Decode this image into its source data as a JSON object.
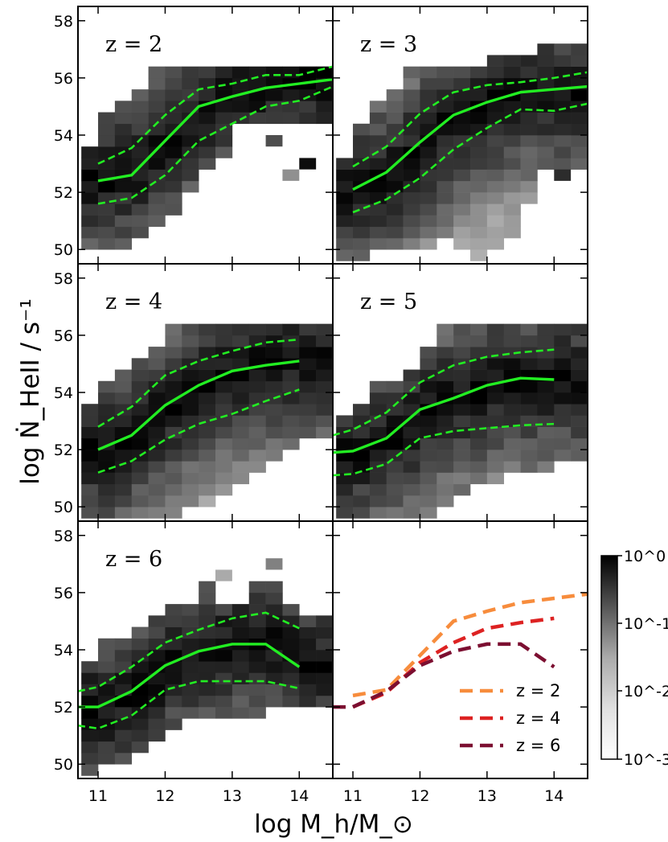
{
  "figure": {
    "xlabel": "log M_h/M_⊙",
    "ylabel": "log Ṅ_HeII / s⁻¹",
    "x_ticks": [
      "11",
      "12",
      "13",
      "14"
    ],
    "y_ticks": [
      "50",
      "52",
      "54",
      "56",
      "58"
    ],
    "colorbar_ticks": [
      "10^0",
      "10^-1",
      "10^-2",
      "10^-3"
    ]
  },
  "chart_data": {
    "type": "heatmap",
    "xlabel": "log M_h/M_⊙",
    "ylabel": "log Ṅ_HeII / s⁻¹",
    "xlim": [
      10.7,
      14.5
    ],
    "ylim": [
      49.5,
      58.5
    ],
    "colorbar": {
      "label": "",
      "scale": "log",
      "range": [
        0.001,
        1
      ],
      "ticks": [
        "10^0",
        "10^-1",
        "10^-2",
        "10^-3"
      ]
    },
    "panels": [
      {
        "label": "z = 2",
        "median": {
          "x": [
            11.0,
            11.5,
            12.0,
            12.5,
            13.0,
            13.5,
            14.0,
            14.5
          ],
          "y": [
            52.4,
            52.6,
            53.8,
            55.0,
            55.35,
            55.65,
            55.8,
            55.95
          ]
        },
        "upper": {
          "x": [
            11.0,
            11.5,
            12.0,
            12.5,
            13.0,
            13.5,
            14.0,
            14.5
          ],
          "y": [
            53.0,
            53.55,
            54.7,
            55.6,
            55.8,
            56.1,
            56.1,
            56.4
          ]
        },
        "lower": {
          "x": [
            11.0,
            11.5,
            12.0,
            12.5,
            13.0,
            13.5,
            14.0,
            14.5
          ],
          "y": [
            51.6,
            51.8,
            52.6,
            53.8,
            54.4,
            55.0,
            55.2,
            55.7
          ]
        },
        "ridge": [
          52.4,
          52.4,
          52.6,
          52.8,
          53.3,
          53.8,
          54.4,
          55.0,
          55.2,
          55.4,
          55.6,
          55.8,
          55.8,
          55.9
        ],
        "ymin": [
          50.2,
          50.2,
          50.2,
          50.6,
          50.8,
          51.4,
          52.2,
          52.8,
          53.4,
          54.6,
          54.6,
          54.6,
          54.6,
          54.6
        ],
        "ymax": [
          53.6,
          54.8,
          55.2,
          55.6,
          56.2,
          56.2,
          56.2,
          56.2,
          56.2,
          56.2,
          56.6,
          56.6,
          56.6,
          56.6
        ],
        "extras": [
          [
            14.0,
            52.6,
            0.7
          ],
          [
            13.6,
            53.8,
            0.12
          ],
          [
            13.7,
            52.2,
            0.02
          ]
        ]
      },
      {
        "label": "z = 3",
        "median": {
          "x": [
            11.0,
            11.5,
            12.0,
            12.5,
            13.0,
            13.5,
            14.0,
            14.5
          ],
          "y": [
            52.1,
            52.7,
            53.75,
            54.7,
            55.15,
            55.5,
            55.6,
            55.7
          ]
        },
        "upper": {
          "x": [
            11.0,
            11.5,
            12.0,
            12.5,
            13.0,
            13.5,
            14.0,
            14.5
          ],
          "y": [
            52.9,
            53.6,
            54.75,
            55.5,
            55.75,
            55.85,
            56.0,
            56.2
          ]
        },
        "lower": {
          "x": [
            11.0,
            11.5,
            12.0,
            12.5,
            13.0,
            13.5,
            14.0,
            14.5
          ],
          "y": [
            51.3,
            51.75,
            52.5,
            53.5,
            54.25,
            54.9,
            54.85,
            55.1
          ]
        },
        "ridge": [
          52.1,
          52.1,
          52.4,
          52.7,
          53.2,
          53.75,
          54.3,
          54.7,
          55.0,
          55.15,
          55.3,
          55.5,
          55.55,
          55.6
        ],
        "ymin": [
          49.8,
          49.8,
          50.2,
          50.2,
          50.2,
          50.2,
          50.6,
          50.2,
          49.8,
          50.2,
          50.6,
          51.8,
          53.0,
          53.0
        ],
        "ymax": [
          53.4,
          54.2,
          55.2,
          55.6,
          56.2,
          56.6,
          56.6,
          56.6,
          56.6,
          57.0,
          57.0,
          57.0,
          57.4,
          57.4
        ],
        "extras": [
          [
            14.0,
            52.2,
            0.3
          ]
        ]
      },
      {
        "label": "z = 4",
        "median": {
          "x": [
            11.0,
            11.5,
            12.0,
            12.5,
            13.0,
            13.5,
            14.0
          ],
          "y": [
            52.0,
            52.5,
            53.55,
            54.25,
            54.75,
            54.95,
            55.1
          ]
        },
        "upper": {
          "x": [
            11.0,
            11.5,
            12.0,
            12.5,
            13.0,
            13.5,
            14.0
          ],
          "y": [
            52.8,
            53.5,
            54.6,
            55.1,
            55.45,
            55.75,
            55.85
          ]
        },
        "lower": {
          "x": [
            11.0,
            11.5,
            12.0,
            12.5,
            13.0,
            13.5,
            14.0
          ],
          "y": [
            51.2,
            51.6,
            52.35,
            52.9,
            53.25,
            53.7,
            54.1
          ]
        },
        "ridge": [
          52.0,
          52.0,
          52.3,
          52.6,
          53.1,
          53.55,
          54.0,
          54.3,
          54.6,
          54.8,
          54.9,
          55.0,
          55.1,
          55.1
        ],
        "ymin": [
          49.8,
          49.8,
          49.8,
          49.8,
          49.8,
          49.8,
          50.2,
          50.2,
          50.6,
          51.0,
          51.4,
          51.8,
          52.2,
          52.6
        ],
        "ymax": [
          53.8,
          54.2,
          55.0,
          55.4,
          55.8,
          56.2,
          56.2,
          56.2,
          56.2,
          56.6,
          56.6,
          56.6,
          56.6,
          56.6
        ],
        "extras": []
      },
      {
        "label": "z = 5",
        "median": {
          "x": [
            10.7,
            11.0,
            11.5,
            12.0,
            12.5,
            13.0,
            13.5,
            14.0
          ],
          "y": [
            51.9,
            51.95,
            52.4,
            53.4,
            53.8,
            54.25,
            54.5,
            54.45
          ]
        },
        "upper": {
          "x": [
            10.7,
            11.0,
            11.5,
            12.0,
            12.5,
            13.0,
            13.5,
            14.0
          ],
          "y": [
            52.5,
            52.7,
            53.3,
            54.35,
            54.95,
            55.25,
            55.4,
            55.5
          ]
        },
        "lower": {
          "x": [
            10.7,
            11.0,
            11.5,
            12.0,
            12.5,
            13.0,
            13.5,
            14.0
          ],
          "y": [
            51.1,
            51.15,
            51.5,
            52.4,
            52.65,
            52.75,
            52.85,
            52.9
          ]
        },
        "ridge": [
          51.9,
          51.9,
          52.2,
          52.5,
          52.9,
          53.4,
          53.6,
          53.85,
          54.1,
          54.3,
          54.4,
          54.5,
          54.45,
          54.45
        ],
        "ymin": [
          49.8,
          49.8,
          49.8,
          49.8,
          49.8,
          49.8,
          50.2,
          50.6,
          51.0,
          51.0,
          51.4,
          51.4,
          51.4,
          51.8
        ],
        "ymax": [
          53.4,
          53.8,
          54.2,
          54.6,
          55.0,
          55.8,
          56.2,
          56.2,
          56.2,
          56.2,
          56.2,
          56.2,
          56.2,
          56.2
        ],
        "extras": []
      },
      {
        "label": "z = 6",
        "median": {
          "x": [
            10.7,
            11.0,
            11.5,
            12.0,
            12.5,
            13.0,
            13.5,
            14.0
          ],
          "y": [
            52.0,
            52.0,
            52.55,
            53.45,
            53.95,
            54.2,
            54.2,
            53.4
          ]
        },
        "upper": {
          "x": [
            10.7,
            11.0,
            11.5,
            12.0,
            12.5,
            13.0,
            13.5,
            14.0
          ],
          "y": [
            52.55,
            52.7,
            53.4,
            54.25,
            54.7,
            55.1,
            55.3,
            54.75
          ]
        },
        "lower": {
          "x": [
            10.7,
            11.0,
            11.5,
            12.0,
            12.5,
            13.0,
            13.5,
            14.0
          ],
          "y": [
            51.35,
            51.25,
            51.7,
            52.6,
            52.9,
            52.9,
            52.9,
            52.65
          ]
        },
        "ridge": [
          52.0,
          52.0,
          52.25,
          52.55,
          53.0,
          53.45,
          53.7,
          53.95,
          54.1,
          54.2,
          54.2,
          54.2,
          53.8,
          53.4
        ],
        "ymin": [
          49.8,
          50.2,
          50.2,
          50.6,
          51.0,
          51.4,
          51.8,
          51.8,
          51.8,
          51.8,
          51.8,
          52.2,
          52.2,
          52.2
        ],
        "ymax": [
          53.8,
          54.2,
          54.6,
          55.0,
          55.4,
          55.8,
          55.8,
          56.2,
          55.8,
          55.8,
          56.2,
          56.2,
          55.8,
          55.4
        ],
        "extras": [
          [
            13.6,
            56.6,
            0.03
          ],
          [
            12.8,
            56.2,
            0.01
          ]
        ]
      },
      {
        "label": "",
        "legend_only": true,
        "series": [
          {
            "name": "z = 2",
            "color": "#f78c3c",
            "x": [
              11.0,
              11.5,
              12.0,
              12.5,
              13.0,
              13.5,
              14.0,
              14.5
            ],
            "y": [
              52.4,
              52.6,
              53.8,
              55.0,
              55.35,
              55.65,
              55.8,
              55.95
            ]
          },
          {
            "name": "z = 4",
            "color": "#dd2222",
            "x": [
              11.0,
              11.5,
              12.0,
              12.5,
              13.0,
              13.5,
              14.0
            ],
            "y": [
              52.0,
              52.5,
              53.55,
              54.25,
              54.75,
              54.95,
              55.1
            ]
          },
          {
            "name": "z = 6",
            "color": "#7c0f31",
            "x": [
              10.7,
              11.0,
              11.5,
              12.0,
              12.5,
              13.0,
              13.5,
              14.0
            ],
            "y": [
              52.0,
              52.0,
              52.55,
              53.45,
              53.95,
              54.2,
              54.2,
              53.4
            ]
          }
        ]
      }
    ]
  }
}
